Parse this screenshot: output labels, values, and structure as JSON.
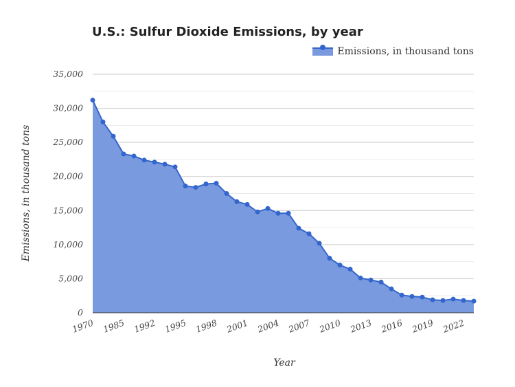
{
  "chart_data": {
    "type": "area",
    "title": "U.S.: Sulfur Dioxide Emissions, by year",
    "xlabel": "Year",
    "ylabel": "Emissions, in thousand tons",
    "ylim": [
      0,
      35000
    ],
    "yticks": [
      0,
      5000,
      10000,
      15000,
      20000,
      25000,
      30000,
      35000
    ],
    "ytick_labels": [
      "0",
      "5,000",
      "10,000",
      "15,000",
      "20,000",
      "25,000",
      "30,000",
      "35,000"
    ],
    "grid": true,
    "legend_position": "top-right",
    "series": [
      {
        "name": "Emissions, in thousand tons",
        "color": "#3366cc",
        "fill": "#7a9ae0",
        "values": [
          31200,
          28000,
          25900,
          23300,
          23000,
          22400,
          22100,
          21800,
          21400,
          18600,
          18400,
          18900,
          19000,
          17500,
          16300,
          15900,
          14800,
          15300,
          14600,
          14600,
          12400,
          11600,
          10200,
          8000,
          7000,
          6400,
          5100,
          4800,
          4500,
          3500,
          2600,
          2400,
          2300,
          1900,
          1800,
          2000,
          1800,
          1700
        ]
      }
    ],
    "x": [
      "1970",
      "1975",
      "1980",
      "1985",
      "1990",
      "1991",
      "1992",
      "1993",
      "1994",
      "1995",
      "1996",
      "1997",
      "1998",
      "1999",
      "2000",
      "2001",
      "2002",
      "2003",
      "2004",
      "2005",
      "2006",
      "2007",
      "2008",
      "2009",
      "2010",
      "2011",
      "2012",
      "2013",
      "2014",
      "2015",
      "2016",
      "2017",
      "2018",
      "2019",
      "2020",
      "2021",
      "2022",
      "2023"
    ],
    "xtick_labels": [
      "1970",
      "1985",
      "1992",
      "1995",
      "1998",
      "2001",
      "2004",
      "2007",
      "2010",
      "2013",
      "2016",
      "2019",
      "2022"
    ]
  }
}
